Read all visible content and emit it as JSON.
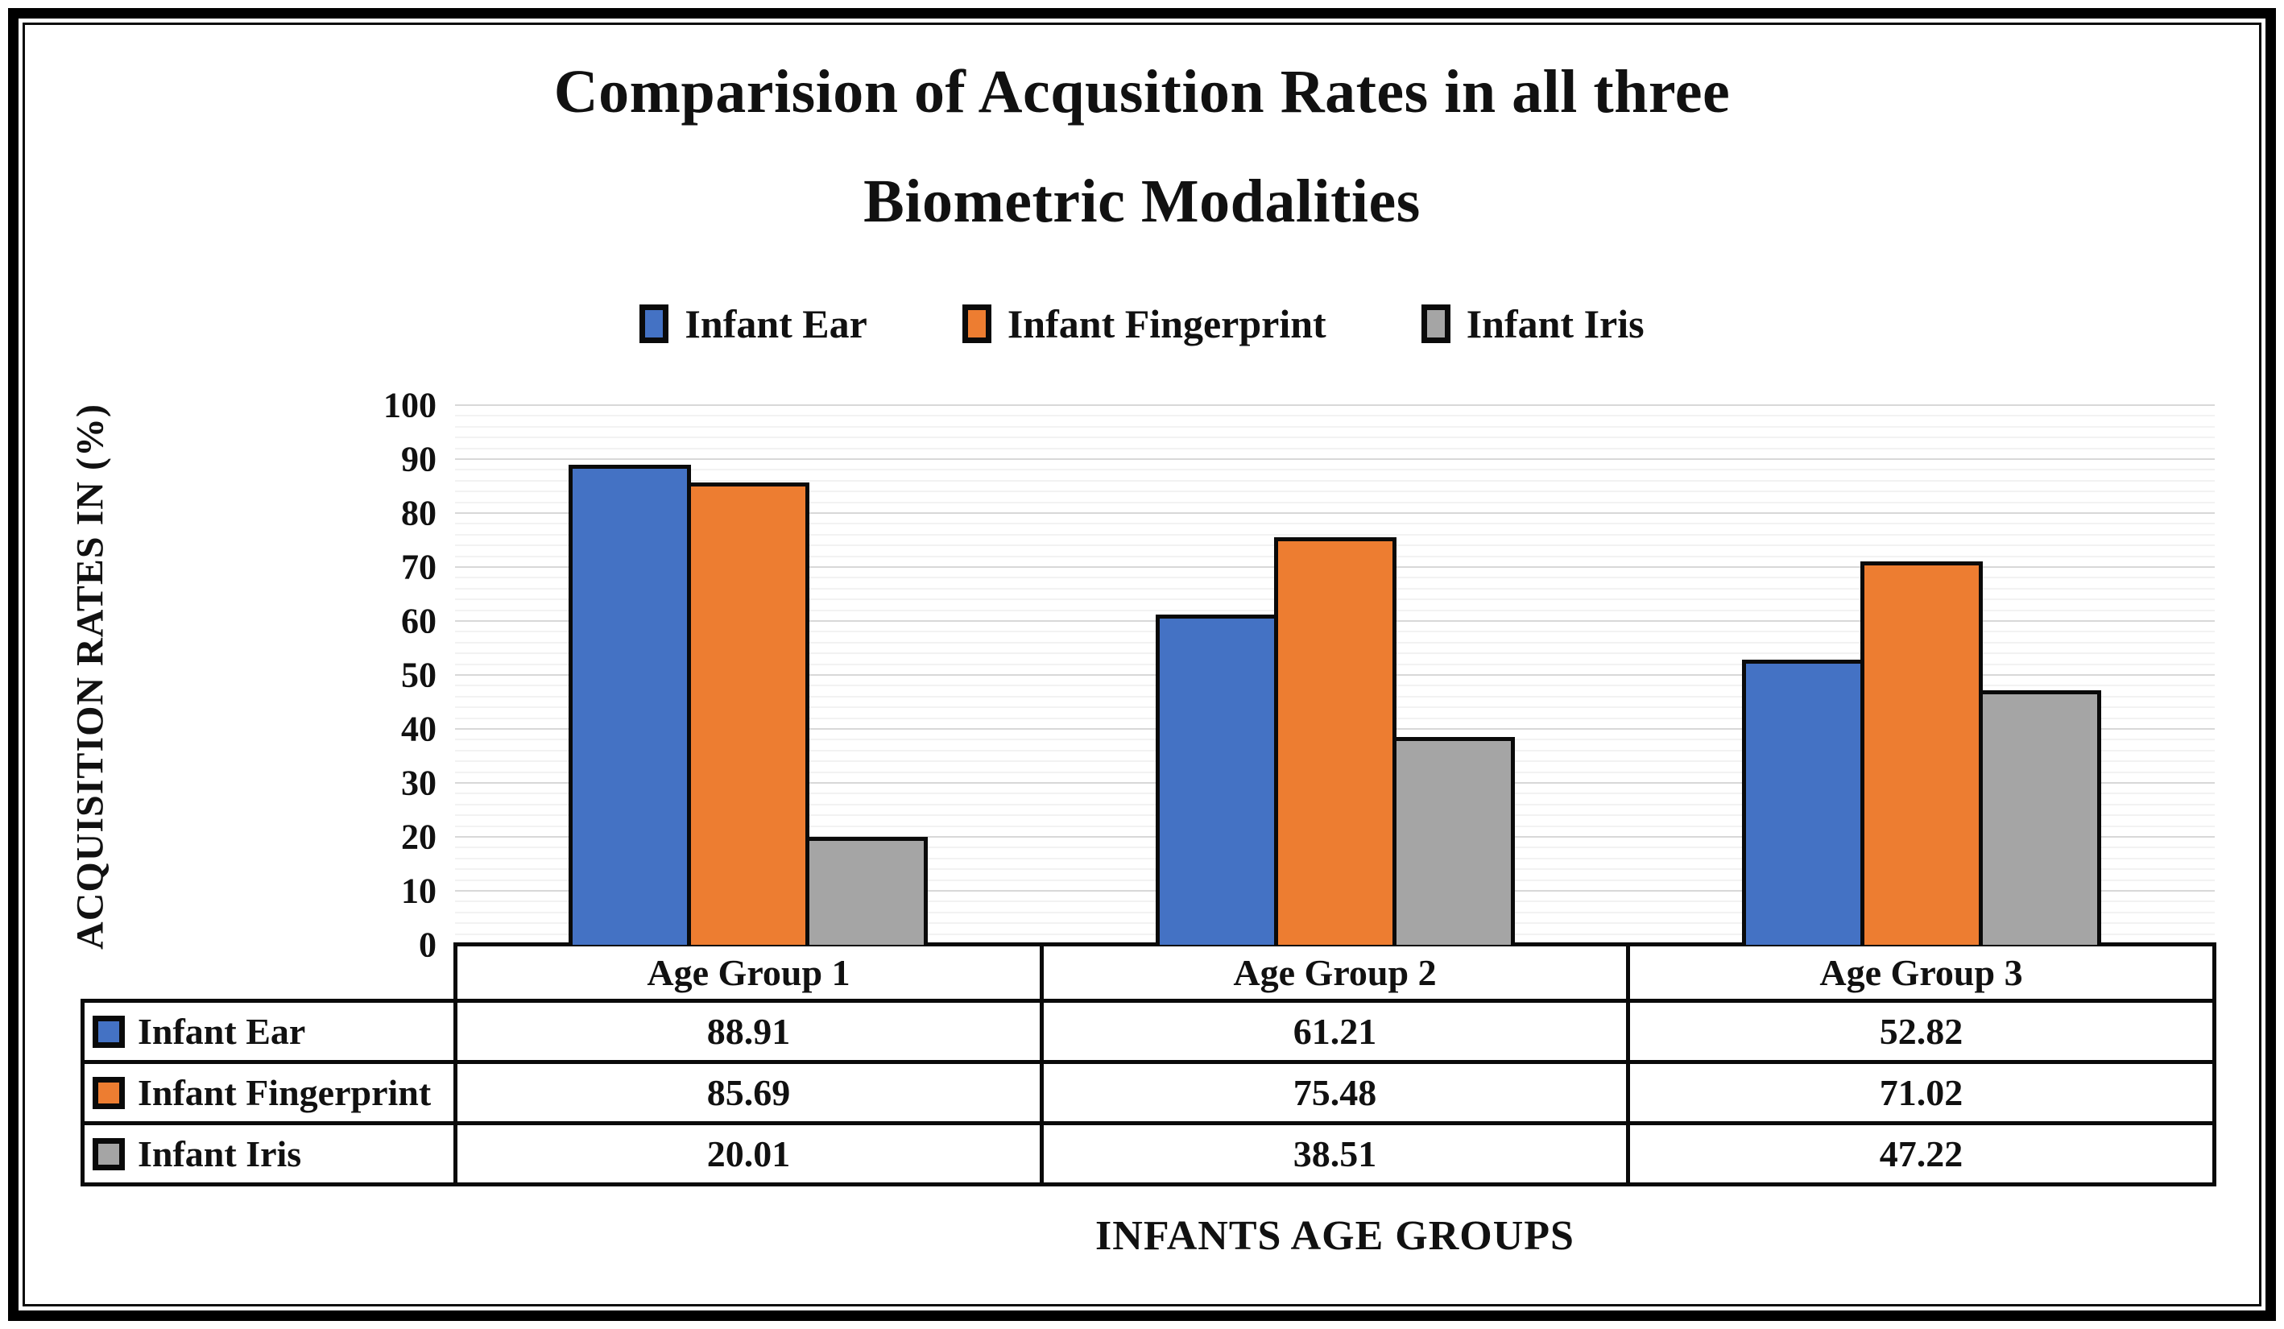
{
  "title": {
    "line1": "Comparision of Acqusition Rates in all three",
    "line2": "Biometric Modalities"
  },
  "legend": {
    "items": [
      {
        "label": "Infant Ear",
        "color": "#4472C4"
      },
      {
        "label": "Infant Fingerprint",
        "color": "#ED7D31"
      },
      {
        "label": "Infant Iris",
        "color": "#A5A5A5"
      }
    ]
  },
  "y_axis": {
    "title": "ACQUISITION RATES IN (%)",
    "ticks": [
      100,
      90,
      80,
      70,
      60,
      50,
      40,
      30,
      20,
      10,
      0
    ],
    "min": 0,
    "max": 100,
    "major_unit": 10,
    "minor_unit": 2
  },
  "x_axis": {
    "title": "INFANTS AGE GROUPS"
  },
  "chart_data": {
    "type": "bar",
    "title": "Comparision of Acqusition Rates in all three Biometric Modalities",
    "categories": [
      "Age Group 1",
      "Age Group 2",
      "Age Group 3"
    ],
    "series": [
      {
        "name": "Infant Ear",
        "color": "#4472C4",
        "values": [
          88.91,
          61.21,
          52.82
        ]
      },
      {
        "name": "Infant Fingerprint",
        "color": "#ED7D31",
        "values": [
          85.69,
          75.48,
          71.02
        ]
      },
      {
        "name": "Infant Iris",
        "color": "#A5A5A5",
        "values": [
          20.01,
          38.51,
          47.22
        ]
      }
    ],
    "xlabel": "INFANTS AGE GROUPS",
    "ylabel": "ACQUISITION RATES IN (%)",
    "ylim": [
      0,
      100
    ],
    "grid": {
      "major": 10,
      "minor": 2,
      "major_color": "#d8d8d8",
      "minor_color": "#f2f2f2"
    },
    "legend_position": "top",
    "bar_border_color": "#0a0a0a"
  },
  "table": {
    "header": [
      "Age Group 1",
      "Age Group 2",
      "Age Group 3"
    ],
    "rows": [
      {
        "label": "Infant Ear",
        "color": "#4472C4",
        "values": [
          "88.91",
          "61.21",
          "52.82"
        ]
      },
      {
        "label": "Infant Fingerprint",
        "color": "#ED7D31",
        "values": [
          "85.69",
          "75.48",
          "71.02"
        ]
      },
      {
        "label": "Infant Iris",
        "color": "#A5A5A5",
        "values": [
          "20.01",
          "38.51",
          "47.22"
        ]
      }
    ]
  }
}
